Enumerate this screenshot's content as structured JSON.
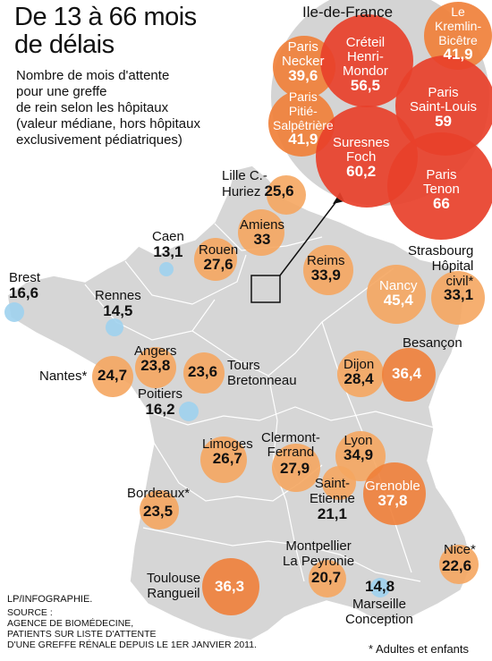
{
  "title_line1": "De 13 à 66 mois",
  "title_line2": "de délais",
  "subtitle_lines": [
    "Nombre de mois d'attente",
    "pour une greffe",
    "de rein selon les hôpitaux",
    "(valeur médiane, hors hôpitaux",
    "exclusivement pédiatriques)"
  ],
  "inset_title": "Ile-de-France",
  "colors": {
    "low": "#9fd2ee",
    "mid": "#f5a660",
    "high": "#e8402a",
    "land": "#d6d6d6",
    "border": "#ffffff",
    "inset_bg": "#d4d4d4"
  },
  "hospitals": {
    "lille": {
      "name": [
        "Lille C.-",
        "Huriez"
      ],
      "value": "25,6"
    },
    "caen": {
      "name": [
        "Caen"
      ],
      "value": "13,1"
    },
    "amiens": {
      "name": [
        "Amiens"
      ],
      "value": "33"
    },
    "rouen": {
      "name": [
        "Rouen"
      ],
      "value": "27,6"
    },
    "reims": {
      "name": [
        "Reims"
      ],
      "value": "33,9"
    },
    "strasbourg": {
      "name": [
        "Strasbourg",
        "Hôpital",
        "civil*"
      ],
      "value": "33,1"
    },
    "nancy": {
      "name": [
        "Nancy"
      ],
      "value": "45,4"
    },
    "brest": {
      "name": [
        "Brest"
      ],
      "value": "16,6"
    },
    "rennes": {
      "name": [
        "Rennes"
      ],
      "value": "14,5"
    },
    "angers": {
      "name": [
        "Angers"
      ],
      "value": "23,8"
    },
    "nantes": {
      "name": [
        "Nantes*"
      ],
      "value": "24,7"
    },
    "tours": {
      "name": [
        "Tours",
        "Bretonneau"
      ],
      "value": "23,6"
    },
    "poitiers": {
      "name": [
        "Poitiers"
      ],
      "value": "16,2"
    },
    "besancon": {
      "name": [
        "Besançon"
      ],
      "value": "36,4"
    },
    "dijon": {
      "name": [
        "Dijon"
      ],
      "value": "28,4"
    },
    "limoges": {
      "name": [
        "Limoges"
      ],
      "value": "26,7"
    },
    "clermont": {
      "name": [
        "Clermont-",
        "Ferrand"
      ],
      "value": "27,9"
    },
    "lyon": {
      "name": [
        "Lyon"
      ],
      "value": "34,9"
    },
    "saintetienne": {
      "name": [
        "Saint-",
        "Etienne"
      ],
      "value": "21,1"
    },
    "grenoble": {
      "name": [
        "Grenoble"
      ],
      "value": "37,8"
    },
    "bordeaux": {
      "name": [
        "Bordeaux*"
      ],
      "value": "23,5"
    },
    "montpellier": {
      "name": [
        "Montpellier",
        "La Peyronie"
      ],
      "value": "20,7"
    },
    "nice": {
      "name": [
        "Nice*"
      ],
      "value": "22,6"
    },
    "toulouse": {
      "name": [
        "Toulouse",
        "Rangueil"
      ],
      "value": "36,3"
    },
    "marseille": {
      "name": [
        "Marseille",
        "Conception"
      ],
      "value": "14,8"
    },
    "necker": {
      "name": [
        "Paris",
        "Necker"
      ],
      "value": "39,6"
    },
    "creteil": {
      "name": [
        "Créteil",
        "Henri-",
        "Mondor"
      ],
      "value": "56,5"
    },
    "kremlin": {
      "name": [
        "Le",
        "Kremlin-",
        "Bicêtre"
      ],
      "value": "41,9"
    },
    "pitie": {
      "name": [
        "Paris",
        "Pitié-",
        "Salpêtrière"
      ],
      "value": "41,9"
    },
    "saintlouis": {
      "name": [
        "Paris",
        "Saint-Louis"
      ],
      "value": "59"
    },
    "suresnes": {
      "name": [
        "Suresnes",
        "Foch"
      ],
      "value": "60,2"
    },
    "tenon": {
      "name": [
        "Paris",
        "Tenon"
      ],
      "value": "66"
    }
  },
  "credit": [
    "LP/INFOGRAPHIE.",
    "SOURCE :",
    "AGENCE DE BIOMÉDECINE,",
    "PATIENTS SUR LISTE D'ATTENTE",
    "D'UNE GREFFE RÉNALE DEPUIS LE 1ER JANVIER 2011."
  ],
  "footnote": "* Adultes et enfants"
}
